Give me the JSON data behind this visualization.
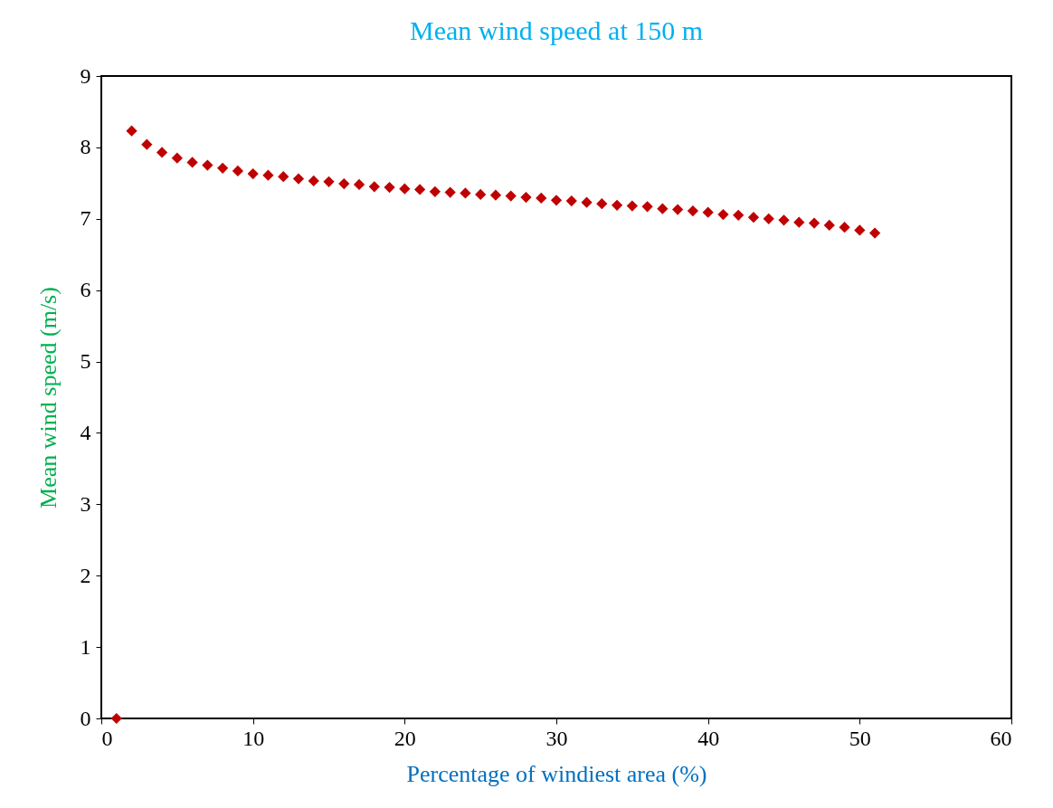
{
  "chart_data": {
    "type": "scatter",
    "title": "Mean wind speed at 150 m",
    "xlabel": "Percentage of windiest area (%)",
    "ylabel": "Mean wind speed (m/s)",
    "x": [
      1,
      2,
      3,
      4,
      5,
      6,
      7,
      8,
      9,
      10,
      11,
      12,
      13,
      14,
      15,
      16,
      17,
      18,
      19,
      20,
      21,
      22,
      23,
      24,
      25,
      26,
      27,
      28,
      29,
      30,
      31,
      32,
      33,
      34,
      35,
      36,
      37,
      38,
      39,
      40,
      41,
      42,
      43,
      44,
      45,
      46,
      47,
      48,
      49,
      50,
      51
    ],
    "series": [
      {
        "color": "#c00000",
        "values": [
          0,
          8.23,
          8.04,
          7.93,
          7.85,
          7.79,
          7.75,
          7.71,
          7.67,
          7.63,
          7.61,
          7.59,
          7.56,
          7.53,
          7.52,
          7.49,
          7.48,
          7.45,
          7.44,
          7.42,
          7.41,
          7.38,
          7.37,
          7.36,
          7.34,
          7.33,
          7.32,
          7.3,
          7.29,
          7.26,
          7.25,
          7.23,
          7.21,
          7.19,
          7.18,
          7.17,
          7.14,
          7.13,
          7.11,
          7.09,
          7.06,
          7.05,
          7.02,
          7.0,
          6.98,
          6.95,
          6.94,
          6.91,
          6.88,
          6.84,
          6.8
        ]
      }
    ],
    "xlim": [
      0,
      60
    ],
    "xticks": [
      0,
      10,
      20,
      30,
      40,
      50,
      60
    ],
    "ylim": [
      0,
      9
    ],
    "yticks": [
      0,
      1,
      2,
      3,
      4,
      5,
      6,
      7,
      8,
      9
    ],
    "marker": "diamond",
    "grid": false
  }
}
